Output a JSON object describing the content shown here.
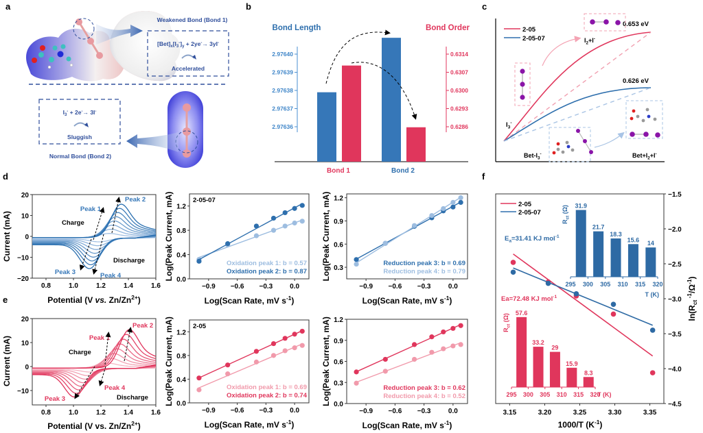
{
  "panel_labels": {
    "a": "a",
    "b": "b",
    "c": "c",
    "d": "d",
    "e": "e",
    "f": "f"
  },
  "colors": {
    "blue": "#2e6fad",
    "lightblue": "#9dbde0",
    "red": "#e0365c",
    "lightred": "#f19aab",
    "navy": "#2f4e9b",
    "black": "#000000"
  },
  "panel_a": {
    "weakened_label": "Weakened Bond (Bond 1)",
    "reaction_top": "[Bet]x[I3-]y + 2ye- → 3yI-",
    "accelerated": "Accelerated",
    "reaction_bottom": "I3- + 2e- → 3I-",
    "sluggish": "Sluggish",
    "normal_label": "Normal Bond (Bond 2)"
  },
  "chart_data": [
    {
      "id": "b",
      "type": "bar",
      "title_left": "Bond Length",
      "title_right": "Bond Order",
      "categories": [
        "Bond 1",
        "Bond 2"
      ],
      "series": [
        {
          "name": "Bond Length",
          "axis": "left",
          "values": [
            2.976379,
            2.976409
          ]
        },
        {
          "name": "Bond Order",
          "axis": "right",
          "values": [
            0.63096,
            0.62858
          ]
        }
      ],
      "left_ticks": [
        "2.97640",
        "2.97639",
        "2.97638",
        "2.97637",
        "2.97636"
      ],
      "left_tick_values": [
        2.9764,
        2.97639,
        2.97638,
        2.97637,
        2.97636
      ],
      "right_ticks": [
        "0.6314",
        "0.6307",
        "0.6300",
        "0.6293",
        "0.6286"
      ],
      "right_tick_values": [
        0.6314,
        0.6307,
        0.63,
        0.6293,
        0.6286
      ]
    },
    {
      "id": "c",
      "type": "line",
      "legend": [
        "2-05",
        "2-05-07"
      ],
      "legend_position": "top-left",
      "series": [
        {
          "name": "2-05",
          "barrier_eV": 0.653
        },
        {
          "name": "2-05-07",
          "barrier_eV": 0.626
        }
      ],
      "annotations": [
        "0.653 eV",
        "0.626 eV",
        "I2+I-",
        "I3-",
        "Bet-I3-",
        "Bet+I2+I-"
      ]
    },
    {
      "id": "d-cv",
      "type": "line",
      "xlabel": "Potential (V vs. Zn/Zn2+)",
      "ylabel": "Current (mA)",
      "xlim": [
        0.7,
        1.6
      ],
      "ylim": [
        -20,
        20
      ],
      "xticks": [
        "0.8",
        "1.0",
        "1.2",
        "1.4",
        "1.6"
      ],
      "yticks": [
        "20",
        "10",
        "0",
        "-10",
        "-20"
      ],
      "curves": 8,
      "ox_peak_max_mA": 16,
      "red_peak_min_mA": -16,
      "annotations": [
        "Peak 1",
        "Peak 2",
        "Peak 3",
        "Peak 4",
        "Charge",
        "Discharge"
      ]
    },
    {
      "id": "d-ox",
      "type": "scatter",
      "label": "2-05-07",
      "xlabel": "Log(Scan Rate, mV s-1)",
      "ylabel": "Log(Peak Current, mA)",
      "xlim": [
        -1.1,
        0.15
      ],
      "ylim": [
        0,
        1.4
      ],
      "xticks": [
        "-0.9",
        "-0.6",
        "-0.3",
        "0.0"
      ],
      "yticks": [
        "0.0",
        "0.4",
        "0.8",
        "1.2"
      ],
      "x": [
        -1.0,
        -0.7,
        -0.4,
        -0.22,
        -0.1,
        0.0,
        0.08
      ],
      "series": [
        {
          "name": "Oxidation peak 1: b = 0.57",
          "color": "lightblue",
          "values": [
            0.32,
            0.56,
            0.71,
            0.8,
            0.87,
            0.92,
            0.95
          ]
        },
        {
          "name": "Oxidation peak 2: b = 0.87",
          "color": "blue",
          "values": [
            0.29,
            0.58,
            0.87,
            1.0,
            1.09,
            1.16,
            1.21
          ]
        }
      ]
    },
    {
      "id": "d-red",
      "type": "scatter",
      "xlabel": "Log(Scan Rate, mV s-1)",
      "ylabel": "Log(Peak Current, mA)",
      "xlim": [
        -1.1,
        0.15
      ],
      "ylim": [
        0.15,
        1.25
      ],
      "xticks": [
        "-0.9",
        "-0.6",
        "-0.3",
        "0.0"
      ],
      "yticks": [
        "0.3",
        "0.6",
        "0.9",
        "1.2"
      ],
      "x": [
        -1.0,
        -0.7,
        -0.4,
        -0.22,
        -0.1,
        0.0,
        0.08
      ],
      "series": [
        {
          "name": "Reduction peak 3: b = 0.69",
          "color": "blue",
          "values": [
            0.4,
            0.61,
            0.83,
            0.94,
            1.03,
            1.08,
            1.14
          ]
        },
        {
          "name": "Reduction peak 4: b = 0.79",
          "color": "lightblue",
          "values": [
            0.34,
            0.61,
            0.84,
            0.97,
            1.06,
            1.14,
            1.2
          ]
        }
      ]
    },
    {
      "id": "e-cv",
      "type": "line",
      "xlabel": "Potential (V vs. Zn/Zn2+)",
      "ylabel": "Current (mA)",
      "xlim": [
        0.7,
        1.6
      ],
      "ylim": [
        -16,
        20
      ],
      "xticks": [
        "0.8",
        "1.0",
        "1.2",
        "1.4",
        "1.6"
      ],
      "yticks": [
        "20",
        "10",
        "0",
        "-10"
      ],
      "curves": 8,
      "ox_peak_max_mA": 16,
      "red_peak_min_mA": -13,
      "annotations": [
        "Peak 1",
        "Peak 2",
        "Peak 3",
        "Peak 4",
        "Charge",
        "Discharge"
      ]
    },
    {
      "id": "e-ox",
      "type": "scatter",
      "label": "2-05",
      "xlabel": "Log(Scan Rate, mV s-1)",
      "ylabel": "Log(Peak Current, mA)",
      "xlim": [
        -1.1,
        0.15
      ],
      "ylim": [
        0,
        1.4
      ],
      "xticks": [
        "-0.9",
        "-0.6",
        "-0.3",
        "0.0"
      ],
      "yticks": [
        "0.0",
        "0.4",
        "0.8",
        "1.2"
      ],
      "x": [
        -1.0,
        -0.7,
        -0.4,
        -0.22,
        -0.1,
        0.0,
        0.08
      ],
      "series": [
        {
          "name": "Oxidation peak 1: b = 0.69",
          "color": "lightred",
          "values": [
            0.22,
            0.49,
            0.69,
            0.8,
            0.88,
            0.93,
            0.97
          ]
        },
        {
          "name": "Oxidation peak 2: b = 0.74",
          "color": "red",
          "values": [
            0.42,
            0.64,
            0.87,
            1.0,
            1.09,
            1.16,
            1.21
          ]
        }
      ]
    },
    {
      "id": "e-red",
      "type": "scatter",
      "xlabel": "Log(Scan Rate, mV s-1)",
      "ylabel": "Log(Peak Current, mA)",
      "xlim": [
        -1.1,
        0.15
      ],
      "ylim": [
        0,
        1.2
      ],
      "xticks": [
        "-0.9",
        "-0.6",
        "-0.3",
        "0.0"
      ],
      "yticks": [
        "0.0",
        "0.3",
        "0.6",
        "0.9",
        "1.2"
      ],
      "x": [
        -1.0,
        -0.7,
        -0.4,
        -0.22,
        -0.1,
        0.0,
        0.08
      ],
      "series": [
        {
          "name": "Reduction peak 3: b = 0.62",
          "color": "red",
          "values": [
            0.45,
            0.63,
            0.84,
            0.95,
            1.02,
            1.07,
            1.11
          ]
        },
        {
          "name": "Reduction peak 4: b = 0.52",
          "color": "lightred",
          "values": [
            0.29,
            0.46,
            0.63,
            0.73,
            0.78,
            0.82,
            0.84
          ]
        }
      ]
    },
    {
      "id": "f",
      "type": "scatter",
      "xlabel": "1000/T (K-1)",
      "ylabel": "ln(Rct-1/Ω-1)",
      "xlim": [
        3.13,
        3.37
      ],
      "ylim": [
        -4.5,
        -1.5
      ],
      "xticks": [
        "3.15",
        "3.20",
        "3.25",
        "3.30",
        "3.35"
      ],
      "yticks": [
        "-1.5",
        "-2.0",
        "-2.5",
        "-3.0",
        "-3.5",
        "-4.0",
        "-4.5"
      ],
      "legend": [
        "2-05",
        "2-05-07"
      ],
      "legend_position": "top-left",
      "x": [
        3.155,
        3.205,
        3.245,
        3.298,
        3.354
      ],
      "series": [
        {
          "name": "2-05",
          "color": "red",
          "values": [
            -2.48,
            -2.76,
            -2.96,
            -3.22,
            -4.06
          ],
          "fit": [
            -2.36,
            -3.82
          ],
          "annotation": "Ea=72.48 KJ mol-1"
        },
        {
          "name": "2-05-07",
          "color": "blue",
          "values": [
            -2.62,
            -2.78,
            -2.93,
            -3.08,
            -3.45
          ],
          "fit": [
            -2.56,
            -3.38
          ],
          "annotation": "Ea=31.41 KJ mol-1"
        }
      ],
      "insets": [
        {
          "name": "2-05-07 Rct",
          "color": "blue",
          "ylabel": "Rct (Ω)",
          "xlabel": "T (K)",
          "xticks": [
            "295",
            "300",
            "305",
            "310",
            "315",
            "320"
          ],
          "categories": [
            298,
            303,
            308,
            313,
            318
          ],
          "values": [
            31.9,
            21.7,
            18.3,
            15.6,
            14
          ],
          "labels": [
            "31.9",
            "21.7",
            "18.3",
            "15.6",
            "14"
          ]
        },
        {
          "name": "2-05 Rct",
          "color": "red",
          "ylabel": "Rct (Ω)",
          "xlabel": "T (K)",
          "xticks": [
            "295",
            "300",
            "305",
            "310",
            "315",
            "320"
          ],
          "categories": [
            298,
            303,
            308,
            313,
            318
          ],
          "values": [
            57.6,
            33.2,
            29,
            15.9,
            8.3
          ],
          "labels": [
            "57.6",
            "33.2",
            "29",
            "15.9",
            "8.3"
          ]
        }
      ]
    }
  ]
}
